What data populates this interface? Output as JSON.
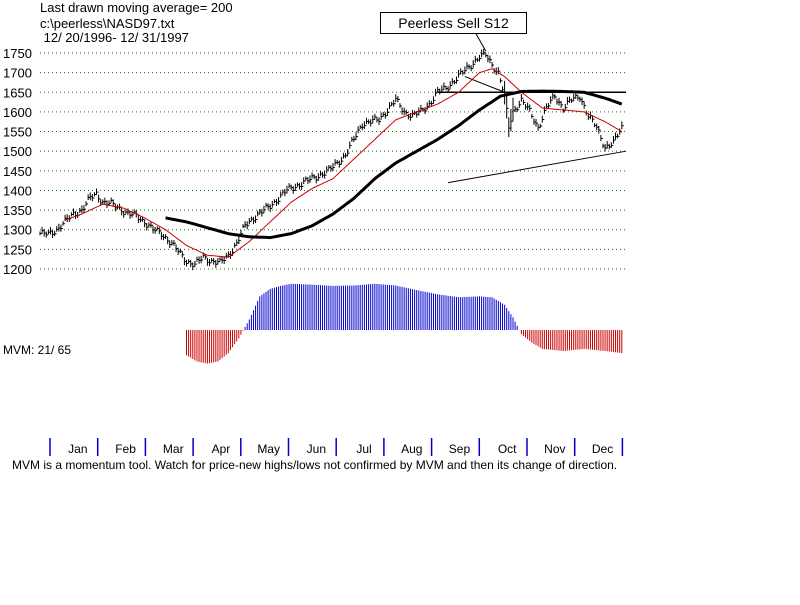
{
  "header": {
    "line1": "Last drawn moving average= 200",
    "line2": "c:\\peerless\\NASD97.txt",
    "line3": " 12/ 20/1996- 12/ 31/1997"
  },
  "signal": {
    "label": "Peerless Sell S12"
  },
  "mvm": {
    "label": "MVM: 21/ 65"
  },
  "footnote": "MVM is a momentum tool. Watch for price-new highs/lows not confirmed by MVM and then its change of direction.",
  "chart_data": {
    "type": "line",
    "title": "",
    "xlabel": "",
    "ylabel": "",
    "ylim": [
      1200,
      1750
    ],
    "yticks": [
      1750,
      1700,
      1650,
      1600,
      1550,
      1500,
      1450,
      1400,
      1350,
      1300,
      1250,
      1200
    ],
    "months": [
      "Jan",
      "Feb",
      "Mar",
      "Apr",
      "May",
      "Jun",
      "Jul",
      "Aug",
      "Sep",
      "Oct",
      "Nov",
      "Dec"
    ],
    "grid": true,
    "colors": {
      "mvm_positive": "#0000cc",
      "mvm_negative": "#cc0000",
      "ma_short": "#cc0000",
      "ma_long": "#000000",
      "grid": "#008000"
    },
    "price_anchors": [
      [
        0,
        1290
      ],
      [
        4,
        1288
      ],
      [
        8,
        1300
      ],
      [
        12,
        1320
      ],
      [
        16,
        1340
      ],
      [
        20,
        1350
      ],
      [
        24,
        1380
      ],
      [
        27,
        1392
      ],
      [
        30,
        1370
      ],
      [
        34,
        1365
      ],
      [
        38,
        1355
      ],
      [
        42,
        1340
      ],
      [
        46,
        1335
      ],
      [
        50,
        1320
      ],
      [
        54,
        1300
      ],
      [
        58,
        1290
      ],
      [
        62,
        1270
      ],
      [
        66,
        1245
      ],
      [
        70,
        1220
      ],
      [
        74,
        1210
      ],
      [
        78,
        1230
      ],
      [
        82,
        1220
      ],
      [
        86,
        1215
      ],
      [
        90,
        1235
      ],
      [
        94,
        1265
      ],
      [
        98,
        1310
      ],
      [
        102,
        1330
      ],
      [
        106,
        1345
      ],
      [
        110,
        1360
      ],
      [
        114,
        1380
      ],
      [
        118,
        1400
      ],
      [
        122,
        1410
      ],
      [
        126,
        1420
      ],
      [
        130,
        1430
      ],
      [
        134,
        1440
      ],
      [
        138,
        1450
      ],
      [
        142,
        1470
      ],
      [
        146,
        1490
      ],
      [
        150,
        1530
      ],
      [
        154,
        1570
      ],
      [
        158,
        1575
      ],
      [
        162,
        1580
      ],
      [
        166,
        1605
      ],
      [
        170,
        1630
      ],
      [
        174,
        1600
      ],
      [
        178,
        1590
      ],
      [
        182,
        1600
      ],
      [
        186,
        1620
      ],
      [
        190,
        1650
      ],
      [
        194,
        1660
      ],
      [
        198,
        1680
      ],
      [
        202,
        1700
      ],
      [
        206,
        1720
      ],
      [
        210,
        1740
      ],
      [
        213,
        1745
      ],
      [
        216,
        1720
      ],
      [
        219,
        1700
      ],
      [
        222,
        1640
      ],
      [
        224,
        1560
      ],
      [
        226,
        1600
      ],
      [
        230,
        1630
      ],
      [
        234,
        1600
      ],
      [
        238,
        1560
      ],
      [
        242,
        1610
      ],
      [
        246,
        1640
      ],
      [
        250,
        1610
      ],
      [
        254,
        1630
      ],
      [
        258,
        1640
      ],
      [
        262,
        1590
      ],
      [
        266,
        1560
      ],
      [
        270,
        1510
      ],
      [
        274,
        1520
      ],
      [
        278,
        1560
      ]
    ],
    "ma_short_anchors": [
      [
        12,
        1325
      ],
      [
        20,
        1340
      ],
      [
        30,
        1365
      ],
      [
        40,
        1355
      ],
      [
        50,
        1330
      ],
      [
        60,
        1300
      ],
      [
        70,
        1260
      ],
      [
        80,
        1235
      ],
      [
        90,
        1230
      ],
      [
        100,
        1270
      ],
      [
        110,
        1320
      ],
      [
        120,
        1370
      ],
      [
        130,
        1405
      ],
      [
        140,
        1430
      ],
      [
        150,
        1480
      ],
      [
        160,
        1530
      ],
      [
        170,
        1580
      ],
      [
        180,
        1600
      ],
      [
        190,
        1620
      ],
      [
        200,
        1650
      ],
      [
        210,
        1700
      ],
      [
        216,
        1710
      ],
      [
        222,
        1690
      ],
      [
        230,
        1650
      ],
      [
        240,
        1610
      ],
      [
        250,
        1605
      ],
      [
        260,
        1600
      ],
      [
        270,
        1575
      ],
      [
        278,
        1550
      ]
    ],
    "ma_long_anchors": [
      [
        60,
        1330
      ],
      [
        70,
        1320
      ],
      [
        80,
        1305
      ],
      [
        90,
        1290
      ],
      [
        100,
        1282
      ],
      [
        110,
        1280
      ],
      [
        120,
        1290
      ],
      [
        130,
        1310
      ],
      [
        140,
        1340
      ],
      [
        150,
        1380
      ],
      [
        160,
        1430
      ],
      [
        170,
        1470
      ],
      [
        180,
        1500
      ],
      [
        190,
        1530
      ],
      [
        200,
        1565
      ],
      [
        210,
        1605
      ],
      [
        220,
        1640
      ],
      [
        230,
        1652
      ],
      [
        240,
        1653
      ],
      [
        250,
        1652
      ],
      [
        260,
        1650
      ],
      [
        270,
        1635
      ],
      [
        278,
        1620
      ]
    ],
    "trendline_low": [
      [
        195,
        1420
      ],
      [
        280,
        1500
      ]
    ],
    "trendline_high": [
      [
        190,
        1650
      ],
      [
        280,
        1650
      ]
    ],
    "mvm_anchors": [
      [
        70,
        -60
      ],
      [
        75,
        -75
      ],
      [
        80,
        -80
      ],
      [
        85,
        -75
      ],
      [
        90,
        -55
      ],
      [
        95,
        -20
      ],
      [
        100,
        25
      ],
      [
        105,
        80
      ],
      [
        110,
        98
      ],
      [
        115,
        105
      ],
      [
        120,
        110
      ],
      [
        130,
        108
      ],
      [
        140,
        105
      ],
      [
        150,
        106
      ],
      [
        160,
        110
      ],
      [
        170,
        106
      ],
      [
        180,
        95
      ],
      [
        190,
        85
      ],
      [
        200,
        78
      ],
      [
        210,
        80
      ],
      [
        216,
        78
      ],
      [
        222,
        60
      ],
      [
        226,
        30
      ],
      [
        230,
        -10
      ],
      [
        235,
        -30
      ],
      [
        240,
        -45
      ],
      [
        250,
        -50
      ],
      [
        260,
        -45
      ],
      [
        270,
        -50
      ],
      [
        278,
        -55
      ]
    ],
    "n_days": 280
  }
}
